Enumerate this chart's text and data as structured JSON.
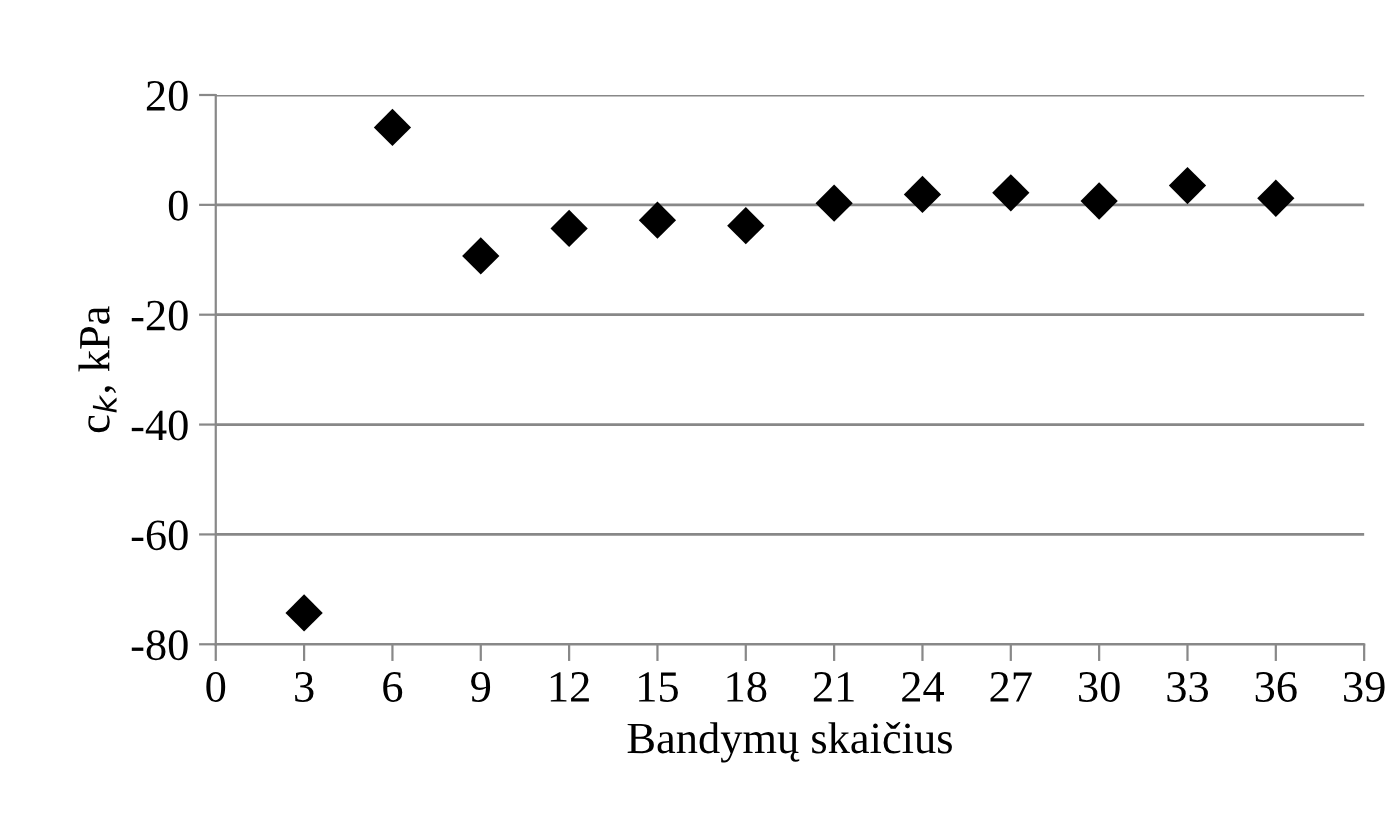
{
  "chart_data": {
    "type": "scatter",
    "xlabel": "Bandymų skaičius",
    "ylabel": "c$_{k}$, kPa",
    "x": [
      3,
      6,
      9,
      12,
      15,
      18,
      21,
      24,
      27,
      30,
      33,
      36
    ],
    "values": [
      -74.3,
      14.1,
      -9.3,
      -4.3,
      -2.8,
      -3.8,
      0.3,
      1.9,
      2.2,
      0.7,
      3.5,
      1.2
    ],
    "color": "#000000",
    "marker": "diamond",
    "xlim": [
      0,
      39
    ],
    "xticks": [
      0,
      3,
      6,
      9,
      12,
      15,
      18,
      21,
      24,
      27,
      30,
      33,
      36,
      39
    ],
    "ylim": [
      -80,
      20
    ],
    "yticks": [
      -80,
      -60,
      -40,
      -20,
      0,
      20
    ],
    "grid": "y",
    "legend": false
  }
}
